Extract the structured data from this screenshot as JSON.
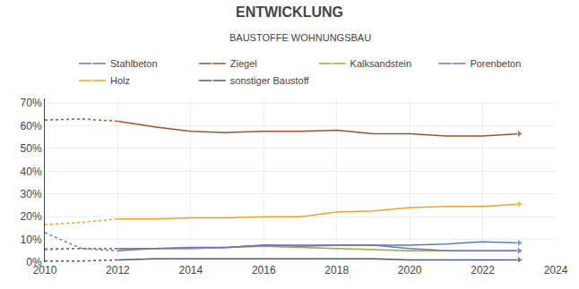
{
  "chart_data": {
    "type": "line",
    "title": "ENTWICKLUNG",
    "subtitle": "BAUSTOFFE WOHNUNGSBAU",
    "xlim": [
      2010,
      2024
    ],
    "xticks": [
      2010,
      2012,
      2014,
      2016,
      2018,
      2020,
      2022,
      2024
    ],
    "ylim": [
      0,
      0.72
    ],
    "yticks": [
      {
        "value": 0,
        "label": "0%"
      },
      {
        "value": 0.1,
        "label": "10%"
      },
      {
        "value": 0.2,
        "label": "20%"
      },
      {
        "value": 0.3,
        "label": "30%"
      },
      {
        "value": 0.4,
        "label": "40%"
      },
      {
        "value": 0.5,
        "label": "50%"
      },
      {
        "value": 0.6,
        "label": "60%"
      },
      {
        "value": 0.7,
        "label": "70%"
      }
    ],
    "grid": true,
    "legend": "top",
    "series": [
      {
        "name": "Stahlbeton",
        "color": "#5B7DB1",
        "line_style": "dotted",
        "x": [
          2010,
          2011,
          2012
        ],
        "values": [
          0.13,
          0.06,
          0.05
        ]
      },
      {
        "name": "Stahlbeton",
        "color": "#5B7DB1",
        "line_style": "solid",
        "marker": "triangle-right",
        "x": [
          2012,
          2013,
          2014,
          2015,
          2016,
          2017,
          2018,
          2019,
          2020,
          2021,
          2022,
          2023
        ],
        "values": [
          0.05,
          0.06,
          0.06,
          0.065,
          0.075,
          0.07,
          0.075,
          0.075,
          0.075,
          0.08,
          0.09,
          0.085
        ]
      },
      {
        "name": "Ziegel",
        "color": "#A0522D",
        "line_style": "dotted",
        "x": [
          2010,
          2011,
          2012
        ],
        "values": [
          0.625,
          0.63,
          0.62
        ]
      },
      {
        "name": "Ziegel",
        "color": "#A0522D",
        "line_style": "solid",
        "marker": "triangle-right",
        "x": [
          2012,
          2013,
          2014,
          2015,
          2016,
          2017,
          2018,
          2019,
          2020,
          2021,
          2022,
          2023
        ],
        "values": [
          0.62,
          0.595,
          0.575,
          0.57,
          0.575,
          0.575,
          0.58,
          0.565,
          0.565,
          0.555,
          0.555,
          0.565
        ]
      },
      {
        "name": "Kalksandstein",
        "color": "#8DB040",
        "line_style": "dotted",
        "x": [
          2010,
          2011,
          2012
        ],
        "values": [
          0.06,
          0.06,
          0.06
        ]
      },
      {
        "name": "Kalksandstein",
        "color": "#8DB040",
        "line_style": "solid",
        "marker": "triangle-right",
        "x": [
          2012,
          2013,
          2014,
          2015,
          2016,
          2017,
          2018,
          2019,
          2020,
          2021,
          2022,
          2023
        ],
        "values": [
          0.06,
          0.06,
          0.06,
          0.065,
          0.07,
          0.065,
          0.06,
          0.055,
          0.05,
          0.05,
          0.05,
          0.05
        ]
      },
      {
        "name": "Porenbeton",
        "color": "#7B68C8",
        "line_style": "dotted",
        "x": [
          2010,
          2011,
          2012
        ],
        "values": [
          0.055,
          0.06,
          0.06
        ]
      },
      {
        "name": "Porenbeton",
        "color": "#7B68C8",
        "line_style": "solid",
        "marker": "triangle-right",
        "x": [
          2012,
          2013,
          2014,
          2015,
          2016,
          2017,
          2018,
          2019,
          2020,
          2021,
          2022,
          2023
        ],
        "values": [
          0.06,
          0.06,
          0.065,
          0.065,
          0.075,
          0.075,
          0.075,
          0.075,
          0.06,
          0.05,
          0.05,
          0.05
        ]
      },
      {
        "name": "Holz",
        "color": "#F4A030",
        "line_style": "dotted",
        "x": [
          2010,
          2011,
          2012
        ],
        "values": [
          0.165,
          0.175,
          0.19
        ]
      },
      {
        "name": "Holz",
        "color": "#F4A030",
        "line_style": "solid",
        "marker": "triangle-right",
        "x": [
          2012,
          2013,
          2014,
          2015,
          2016,
          2017,
          2018,
          2019,
          2020,
          2021,
          2022,
          2023
        ],
        "values": [
          0.19,
          0.19,
          0.195,
          0.195,
          0.2,
          0.2,
          0.22,
          0.225,
          0.24,
          0.245,
          0.245,
          0.255
        ]
      },
      {
        "name": "sonstiger Baustoff",
        "color": "#4B5B78",
        "line_style": "dotted",
        "x": [
          2010,
          2011,
          2012
        ],
        "values": [
          0.005,
          0.005,
          0.01
        ]
      },
      {
        "name": "sonstiger Baustoff",
        "color": "#4B5B78",
        "line_style": "solid",
        "marker": "triangle-right",
        "x": [
          2012,
          2013,
          2014,
          2015,
          2016,
          2017,
          2018,
          2019,
          2020,
          2021,
          2022,
          2023
        ],
        "values": [
          0.01,
          0.015,
          0.015,
          0.015,
          0.015,
          0.015,
          0.015,
          0.015,
          0.01,
          0.01,
          0.01,
          0.01
        ]
      }
    ]
  }
}
